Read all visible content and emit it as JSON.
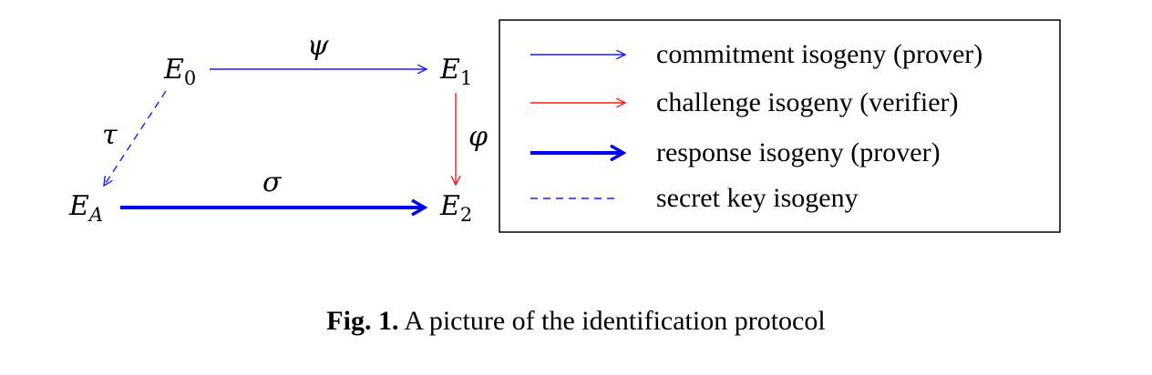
{
  "diagram": {
    "nodes": {
      "e0": {
        "base": "E",
        "sub": "0"
      },
      "e1": {
        "base": "E",
        "sub": "1"
      },
      "ea": {
        "base": "E",
        "sub": "A"
      },
      "e2": {
        "base": "E",
        "sub": "2"
      }
    },
    "edges": {
      "psi": {
        "label": "ψ",
        "from": "E0",
        "to": "E1",
        "style": "commitment"
      },
      "phi": {
        "label": "φ",
        "from": "E1",
        "to": "E2",
        "style": "challenge"
      },
      "sigma": {
        "label": "σ",
        "from": "EA",
        "to": "E2",
        "style": "response"
      },
      "tau": {
        "label": "τ",
        "from": "E0",
        "to": "EA",
        "style": "secret"
      }
    }
  },
  "legend": {
    "items": [
      {
        "label": "commitment isogeny (prover)",
        "color": "#1a1aff",
        "style": "thin"
      },
      {
        "label": "challenge isogeny (verifier)",
        "color": "#ff1a1a",
        "style": "thin"
      },
      {
        "label": "response isogeny (prover)",
        "color": "#0000ee",
        "style": "thick"
      },
      {
        "label": "secret key isogeny",
        "color": "#1a1aff",
        "style": "dashed"
      }
    ]
  },
  "caption": {
    "prefix": "Fig. 1.",
    "text": "A picture of the identification protocol"
  }
}
